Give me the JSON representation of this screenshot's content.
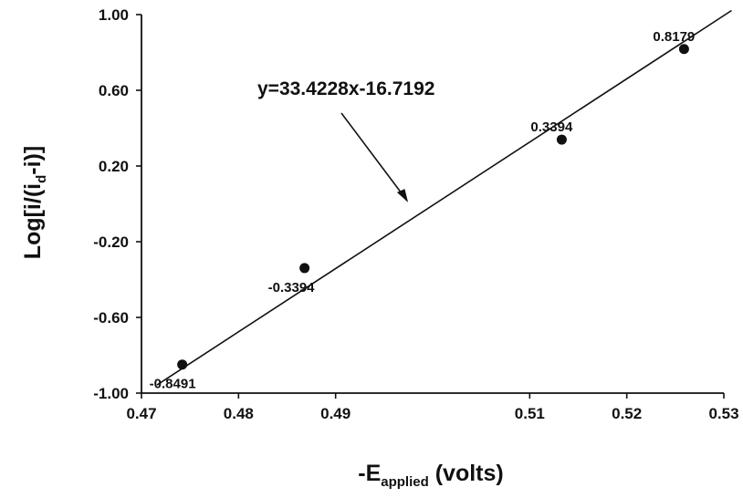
{
  "chart_data": {
    "type": "scatter",
    "xlabel": {
      "prefix": "-E",
      "subscript": "applied",
      "suffix": " (volts)"
    },
    "ylabel": {
      "prefix": "Log[i/(i",
      "subscript": "d",
      "suffix": "-i)]"
    },
    "xlim": [
      0.47,
      0.53
    ],
    "ylim": [
      -1.0,
      1.0
    ],
    "x_ticks": [
      0.47,
      0.48,
      0.49,
      0.51,
      0.52,
      0.53
    ],
    "x_tick_labels": [
      "0.47",
      "0.48",
      "0.49",
      "0.51",
      "0.52",
      "0.53"
    ],
    "y_ticks": [
      1.0,
      0.6,
      0.2,
      -0.2,
      -0.6,
      -1.0
    ],
    "y_tick_labels": [
      "1.00",
      "0.60",
      "0.20",
      "-0.20",
      "-0.60",
      "-1.00"
    ],
    "points": [
      {
        "x": 0.4742,
        "y": -0.8491,
        "label": "-0.8491"
      },
      {
        "x": 0.4868,
        "y": -0.3394,
        "label": "-0.3394"
      },
      {
        "x": 0.5133,
        "y": 0.3394,
        "label": "0.3394"
      },
      {
        "x": 0.5259,
        "y": 0.8179,
        "label": "0.8179"
      }
    ],
    "fit_line": {
      "slope": 33.4228,
      "intercept": -16.7192,
      "x_range": [
        0.4716,
        0.5308
      ]
    },
    "annotation": "y=33.4228x-16.7192",
    "grid": false
  }
}
